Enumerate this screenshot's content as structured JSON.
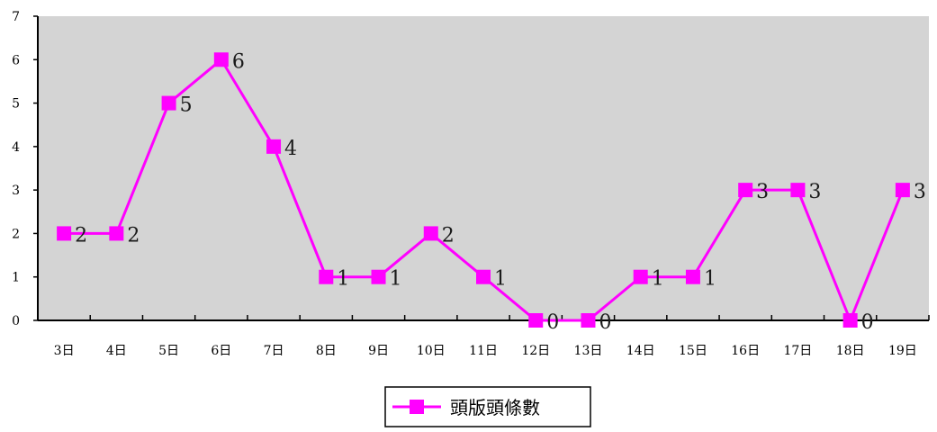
{
  "chart_data": {
    "type": "line",
    "categories": [
      "3日",
      "4日",
      "5日",
      "6日",
      "7日",
      "8日",
      "9日",
      "10日",
      "11日",
      "12日",
      "13日",
      "14日",
      "15日",
      "16日",
      "17日",
      "18日",
      "19日"
    ],
    "series": [
      {
        "name": "頭版頭條數",
        "values": [
          2,
          2,
          5,
          6,
          4,
          1,
          1,
          2,
          1,
          0,
          0,
          1,
          1,
          3,
          3,
          0,
          3
        ],
        "color": "#ff00ff"
      }
    ],
    "ylim": [
      0,
      7
    ],
    "yticks": [
      "0",
      "1",
      "2",
      "3",
      "4",
      "5",
      "6",
      "7"
    ],
    "data_labels": [
      "2",
      "2",
      "5",
      "6",
      "4",
      "1",
      "1",
      "2",
      "1",
      "0",
      "0",
      "1",
      "1",
      "3",
      "3",
      "0",
      "3"
    ],
    "title": "",
    "xlabel": "",
    "ylabel": "",
    "plot_background": "#d4d4d4",
    "grid": false,
    "legend": "bottom-center",
    "marker": "square"
  }
}
